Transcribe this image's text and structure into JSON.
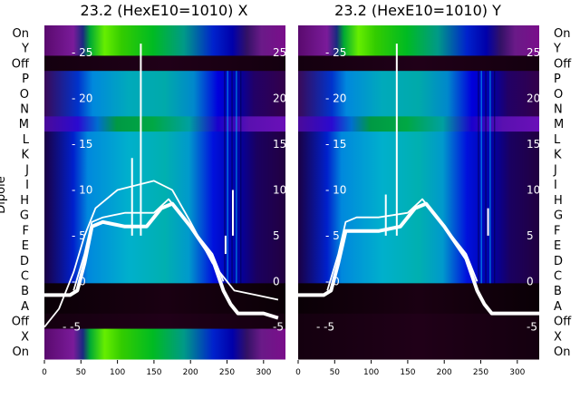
{
  "chart_data": {
    "type": "heatmap",
    "row_labels": [
      "On",
      "Y",
      "Off",
      "P",
      "O",
      "N",
      "M",
      "L",
      "K",
      "J",
      "I",
      "H",
      "G",
      "F",
      "E",
      "D",
      "C",
      "B",
      "A",
      "Off",
      "X",
      "On"
    ],
    "ylabel": "Dipole",
    "colormap": "nipy_spectral",
    "x_ticks": [
      0,
      50,
      100,
      150,
      200,
      250,
      300
    ],
    "xlim": [
      0,
      330
    ],
    "overlay_ticks": [
      -5,
      0,
      5,
      10,
      15,
      20,
      25
    ],
    "overlay_ylim": [
      -8.5,
      28
    ],
    "panels": [
      {
        "title": "23.2 (HexE10=1010) X",
        "bands": [
          {
            "rows": [
              0,
              2
            ],
            "profile": "purple-green"
          },
          {
            "rows": [
              2,
              3
            ],
            "profile": "black"
          },
          {
            "rows": [
              3,
              6
            ],
            "profile": "blue-green"
          },
          {
            "rows": [
              6,
              7
            ],
            "profile": "violet-green"
          },
          {
            "rows": [
              7,
              17
            ],
            "profile": "blue-cyan"
          },
          {
            "rows": [
              17,
              19
            ],
            "profile": "dark-black"
          },
          {
            "rows": [
              19,
              20
            ],
            "profile": "black"
          },
          {
            "rows": [
              20,
              22
            ],
            "profile": "purple-green"
          }
        ],
        "series": [
          {
            "style": "thin",
            "points": [
              [
                0,
                -5
              ],
              [
                20,
                -3
              ],
              [
                40,
                1
              ],
              [
                55,
                5
              ],
              [
                70,
                8
              ],
              [
                100,
                10
              ],
              [
                150,
                11
              ],
              [
                175,
                10
              ],
              [
                200,
                6.5
              ],
              [
                230,
                2
              ],
              [
                260,
                -1
              ],
              [
                290,
                -1.5
              ],
              [
                320,
                -2
              ]
            ]
          },
          {
            "style": "thick",
            "points": [
              [
                0,
                -1.5
              ],
              [
                35,
                -1.5
              ],
              [
                45,
                -1
              ],
              [
                55,
                2
              ],
              [
                65,
                6
              ],
              [
                80,
                6.5
              ],
              [
                110,
                6
              ],
              [
                140,
                6
              ],
              [
                160,
                8
              ],
              [
                175,
                8.5
              ],
              [
                200,
                6
              ],
              [
                230,
                2.5
              ],
              [
                245,
                -1
              ],
              [
                255,
                -2.5
              ],
              [
                265,
                -3.5
              ],
              [
                300,
                -3.5
              ],
              [
                320,
                -4
              ]
            ]
          },
          {
            "style": "thin",
            "points": [
              [
                40,
                -1
              ],
              [
                55,
                3
              ],
              [
                65,
                6.5
              ],
              [
                80,
                7
              ],
              [
                110,
                7.5
              ],
              [
                150,
                7.5
              ],
              [
                170,
                9
              ],
              [
                195,
                6.5
              ],
              [
                230,
                3
              ],
              [
                245,
                0
              ]
            ]
          }
        ],
        "spikes": [
          {
            "x": 120,
            "y": 13.5
          },
          {
            "x": 132,
            "y": 26
          },
          {
            "x": 248,
            "y": 3
          },
          {
            "x": 258,
            "y": 10
          }
        ]
      },
      {
        "title": "23.2 (HexE10=1010) Y",
        "bands": [
          {
            "rows": [
              0,
              2
            ],
            "profile": "purple-green"
          },
          {
            "rows": [
              2,
              3
            ],
            "profile": "black"
          },
          {
            "rows": [
              3,
              6
            ],
            "profile": "blue-green"
          },
          {
            "rows": [
              6,
              7
            ],
            "profile": "violet-green"
          },
          {
            "rows": [
              7,
              17
            ],
            "profile": "blue-cyan"
          },
          {
            "rows": [
              17,
              19
            ],
            "profile": "dark-black"
          },
          {
            "rows": [
              19,
              22
            ],
            "profile": "black"
          }
        ],
        "series": [
          {
            "style": "thick",
            "points": [
              [
                0,
                -1.5
              ],
              [
                35,
                -1.5
              ],
              [
                45,
                -1
              ],
              [
                55,
                2
              ],
              [
                65,
                5.5
              ],
              [
                80,
                5.5
              ],
              [
                110,
                5.5
              ],
              [
                140,
                6
              ],
              [
                160,
                8
              ],
              [
                175,
                8.5
              ],
              [
                200,
                6
              ],
              [
                230,
                2.5
              ],
              [
                245,
                -1
              ],
              [
                255,
                -2.5
              ],
              [
                265,
                -3.5
              ],
              [
                300,
                -3.5
              ],
              [
                330,
                -3.5
              ]
            ]
          },
          {
            "style": "thin",
            "points": [
              [
                40,
                -1
              ],
              [
                55,
                3
              ],
              [
                65,
                6.5
              ],
              [
                80,
                7
              ],
              [
                110,
                7
              ],
              [
                150,
                7.5
              ],
              [
                170,
                9
              ],
              [
                195,
                6.5
              ],
              [
                230,
                3
              ],
              [
                245,
                0
              ]
            ]
          }
        ],
        "spikes": [
          {
            "x": 120,
            "y": 9.5
          },
          {
            "x": 135,
            "y": 26
          },
          {
            "x": 250,
            "y": 5
          },
          {
            "x": 260,
            "y": 8
          }
        ]
      }
    ]
  }
}
